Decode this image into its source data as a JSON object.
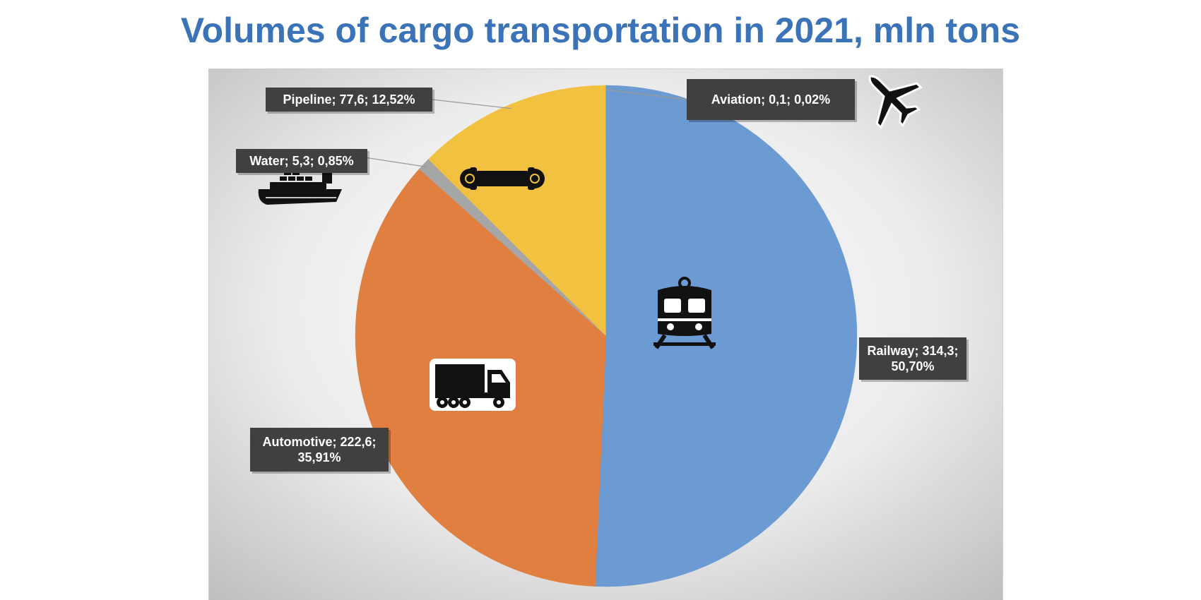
{
  "chart_data": {
    "type": "pie",
    "title": "Volumes of cargo transportation in 2021, mln tons",
    "slices": [
      {
        "category": "Railway",
        "value": 314.3,
        "percent": 50.7,
        "color": "#6b9bd2",
        "icon": "train-icon",
        "label_lines": [
          "Railway; 314,3;",
          "50,70%"
        ]
      },
      {
        "category": "Automotive",
        "value": 222.6,
        "percent": 35.91,
        "color": "#e07f3f",
        "icon": "truck-icon",
        "label_lines": [
          "Automotive; 222,6;",
          "35,91%"
        ]
      },
      {
        "category": "Water",
        "value": 5.3,
        "percent": 0.85,
        "color": "#a6a6a6",
        "icon": "ship-icon",
        "label_lines": [
          "Water; 5,3; 0,85%"
        ]
      },
      {
        "category": "Pipeline",
        "value": 77.6,
        "percent": 12.52,
        "color": "#f2c140",
        "icon": "pipeline-icon",
        "label_lines": [
          "Pipeline; 77,6; 12,52%"
        ]
      },
      {
        "category": "Aviation",
        "value": 0.1,
        "percent": 0.02,
        "color": "#6b9bd2",
        "icon": "airplane-icon",
        "label_lines": [
          "Aviation; 0,1; 0,02%"
        ]
      }
    ],
    "start_angle_deg": 0,
    "direction": "clockwise",
    "legend": "none",
    "data_labels": "callouts"
  }
}
